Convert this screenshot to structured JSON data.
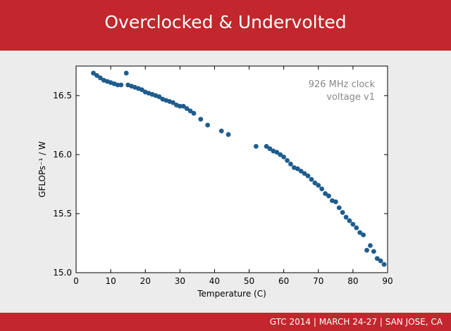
{
  "slide": {
    "title": "Overclocked & Undervolted",
    "footer": "GTC 2014 | MARCH 24-27 | SAN JOSE, CA"
  },
  "colors": {
    "banner": "#c1272d",
    "marker": "#1f5c8e",
    "background": "#ececec"
  },
  "chart_data": {
    "type": "scatter",
    "xlabel": "Temperature (C)",
    "ylabel": "GFLOPs⁻¹ / W",
    "xlim": [
      0,
      90
    ],
    "ylim": [
      15.0,
      16.75
    ],
    "xticks": [
      "0",
      "10",
      "20",
      "30",
      "40",
      "50",
      "60",
      "70",
      "80",
      "90"
    ],
    "yticks": [
      "15.0",
      "15.5",
      "16.0",
      "16.5"
    ],
    "grid": false,
    "legend": "none",
    "annotation": [
      "926 MHz clock",
      "voltage v1"
    ],
    "x": [
      5,
      6,
      7,
      8,
      9,
      10,
      11,
      12,
      13,
      14.5,
      15,
      16,
      17,
      18,
      19,
      20,
      21,
      22,
      23,
      24,
      25,
      26,
      27,
      28,
      29,
      30,
      31,
      32,
      33,
      34,
      36,
      38,
      42,
      44,
      52,
      55,
      56,
      57,
      58,
      59,
      60,
      61,
      62,
      63,
      64,
      65,
      66,
      67,
      68,
      69,
      70,
      71,
      72,
      73,
      74,
      75,
      76,
      77,
      78,
      79,
      80,
      81,
      82,
      83,
      84,
      85,
      86,
      87,
      88,
      89
    ],
    "y": [
      16.69,
      16.67,
      16.65,
      16.63,
      16.62,
      16.61,
      16.6,
      16.59,
      16.59,
      16.69,
      16.59,
      16.58,
      16.57,
      16.56,
      16.55,
      16.53,
      16.52,
      16.51,
      16.5,
      16.49,
      16.47,
      16.46,
      16.45,
      16.44,
      16.42,
      16.41,
      16.41,
      16.39,
      16.37,
      16.35,
      16.3,
      16.25,
      16.2,
      16.17,
      16.07,
      16.07,
      16.05,
      16.03,
      16.02,
      16.0,
      15.98,
      15.95,
      15.92,
      15.89,
      15.88,
      15.86,
      15.84,
      15.82,
      15.79,
      15.76,
      15.74,
      15.71,
      15.67,
      15.65,
      15.61,
      15.6,
      15.55,
      15.51,
      15.47,
      15.44,
      15.41,
      15.38,
      15.34,
      15.32,
      15.19,
      15.23,
      15.18,
      15.12,
      15.1,
      15.07
    ]
  }
}
